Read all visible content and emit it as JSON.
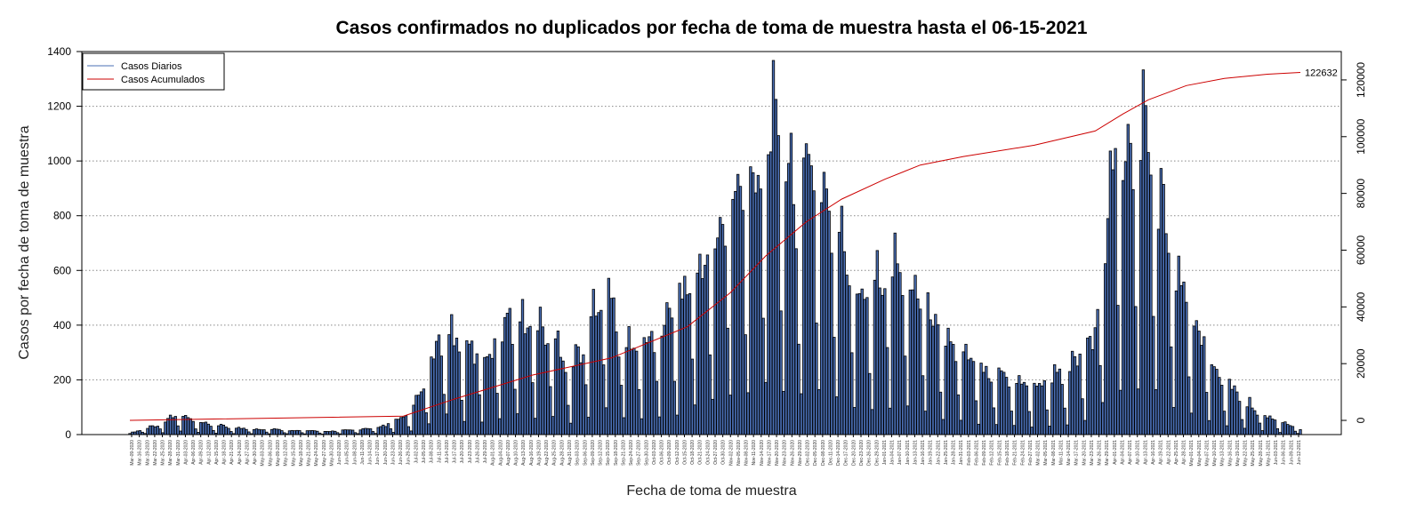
{
  "chart_data": {
    "type": "bar",
    "title": "Casos confirmados no duplicados por fecha de toma de muestra hasta el 06-15-2021",
    "xlabel": "Fecha de toma de muestra",
    "ylabel": "Casos por fecha de toma de muestra",
    "ylim": [
      0,
      1400
    ],
    "y_ticks": [
      "0",
      "200",
      "400",
      "600",
      "800",
      "1000",
      "1200",
      "1400"
    ],
    "y2lim": [
      -5000,
      130000
    ],
    "y2_ticks": [
      "0",
      "20000",
      "40000",
      "60000",
      "80000",
      "100000",
      "120000"
    ],
    "grid": "horizontal dotted",
    "legend_position": "top-left",
    "legend": [
      "Casos Diarios",
      "Casos Acumulados"
    ],
    "end_label": "122632",
    "colors": {
      "daily": "#4a6fb5",
      "daily_outline": "#000000",
      "cumulative": "#cc0000"
    },
    "x_date_labels": [
      "Mar-09-2020",
      "Mar-16-2020",
      "Mar-19-2020",
      "Mar-22-2020",
      "Mar-25-2020",
      "Mar-28-2020",
      "Mar-31-2020",
      "Apr-03-2020",
      "Apr-06-2020",
      "Apr-09-2020",
      "Apr-12-2020",
      "Apr-15-2020",
      "Apr-18-2020",
      "Apr-21-2020",
      "Apr-24-2020",
      "Apr-27-2020",
      "Apr-30-2020",
      "May-03-2020",
      "May-06-2020",
      "May-09-2020",
      "May-12-2020",
      "May-15-2020",
      "May-18-2020",
      "May-21-2020",
      "May-24-2020",
      "May-27-2020",
      "May-30-2020",
      "Jun-02-2020",
      "Jun-05-2020",
      "Jun-08-2020",
      "Jun-11-2020",
      "Jun-14-2020",
      "Jun-17-2020",
      "Jun-20-2020",
      "Jun-23-2020",
      "Jun-26-2020",
      "Jun-29-2020",
      "Jul-02-2020",
      "Jul-05-2020",
      "Jul-08-2020",
      "Jul-11-2020",
      "Jul-14-2020",
      "Jul-17-2020",
      "Jul-20-2020",
      "Jul-23-2020",
      "Jul-26-2020",
      "Jul-29-2020",
      "Aug-01-2020",
      "Aug-04-2020",
      "Aug-07-2020",
      "Aug-10-2020",
      "Aug-13-2020",
      "Aug-16-2020",
      "Aug-19-2020",
      "Aug-22-2020",
      "Aug-25-2020",
      "Aug-28-2020",
      "Aug-31-2020",
      "Sep-03-2020",
      "Sep-06-2020",
      "Sep-09-2020",
      "Sep-12-2020",
      "Sep-15-2020",
      "Sep-18-2020",
      "Sep-21-2020",
      "Sep-24-2020",
      "Sep-27-2020",
      "Sep-30-2020",
      "Oct-03-2020",
      "Oct-06-2020",
      "Oct-09-2020",
      "Oct-12-2020",
      "Oct-15-2020",
      "Oct-18-2020",
      "Oct-21-2020",
      "Oct-24-2020",
      "Oct-27-2020",
      "Oct-30-2020",
      "Nov-02-2020",
      "Nov-05-2020",
      "Nov-08-2020",
      "Nov-11-2020",
      "Nov-14-2020",
      "Nov-17-2020",
      "Nov-20-2020",
      "Nov-23-2020",
      "Nov-26-2020",
      "Nov-29-2020",
      "Dec-02-2020",
      "Dec-05-2020",
      "Dec-08-2020",
      "Dec-11-2020",
      "Dec-14-2020",
      "Dec-17-2020",
      "Dec-20-2020",
      "Dec-23-2020",
      "Dec-26-2020",
      "Dec-29-2020",
      "Jan-01-2021",
      "Jan-04-2021",
      "Jan-07-2021",
      "Jan-10-2021",
      "Jan-13-2021",
      "Jan-16-2021",
      "Jan-19-2021",
      "Jan-22-2021",
      "Jan-25-2021",
      "Jan-28-2021",
      "Jan-31-2021",
      "Feb-03-2021",
      "Feb-06-2021",
      "Feb-09-2021",
      "Feb-12-2021",
      "Feb-15-2021",
      "Feb-18-2021",
      "Feb-21-2021",
      "Feb-24-2021",
      "Feb-27-2021",
      "Mar-02-2021",
      "Mar-05-2021",
      "Mar-08-2021",
      "Mar-11-2021",
      "Mar-14-2021",
      "Mar-17-2021",
      "Mar-20-2021",
      "Mar-23-2021",
      "Mar-26-2021",
      "Mar-29-2021",
      "Apr-01-2021",
      "Apr-04-2021",
      "Apr-07-2021",
      "Apr-10-2021",
      "Apr-13-2021",
      "Apr-16-2021",
      "Apr-19-2021",
      "Apr-22-2021",
      "Apr-25-2021",
      "Apr-28-2021",
      "May-01-2021",
      "May-04-2021",
      "May-07-2021",
      "May-10-2021",
      "May-13-2021",
      "May-16-2021",
      "May-19-2021",
      "May-22-2021",
      "May-25-2021",
      "May-28-2021",
      "May-31-2021",
      "Jun-03-2021",
      "Jun-06-2021",
      "Jun-09-2021",
      "Jun-12-2021"
    ],
    "daily_envelope": {
      "dates": [
        "2020-03-09",
        "2020-03-20",
        "2020-03-28",
        "2020-04-05",
        "2020-04-20",
        "2020-05-10",
        "2020-05-25",
        "2020-06-15",
        "2020-06-28",
        "2020-07-05",
        "2020-07-12",
        "2020-07-18",
        "2020-07-28",
        "2020-08-05",
        "2020-08-15",
        "2020-08-24",
        "2020-08-30",
        "2020-09-06",
        "2020-09-12",
        "2020-09-18",
        "2020-09-25",
        "2020-10-05",
        "2020-10-15",
        "2020-10-25",
        "2020-11-02",
        "2020-11-08",
        "2020-11-14",
        "2020-11-18",
        "2020-11-22",
        "2020-11-28",
        "2020-12-04",
        "2020-12-12",
        "2020-12-22",
        "2021-01-02",
        "2021-01-12",
        "2021-01-22",
        "2021-02-01",
        "2021-02-15",
        "2021-03-01",
        "2021-03-15",
        "2021-03-25",
        "2021-04-02",
        "2021-04-08",
        "2021-04-13",
        "2021-04-18",
        "2021-04-24",
        "2021-05-02",
        "2021-05-12",
        "2021-05-22",
        "2021-06-01",
        "2021-06-14"
      ],
      "values": [
        5,
        40,
        80,
        45,
        25,
        18,
        12,
        25,
        80,
        240,
        440,
        330,
        310,
        460,
        430,
        380,
        260,
        400,
        650,
        380,
        350,
        420,
        590,
        730,
        900,
        1000,
        1100,
        1230,
        1090,
        900,
        1080,
        830,
        560,
        680,
        610,
        420,
        300,
        240,
        190,
        260,
        380,
        1120,
        1080,
        1200,
        1000,
        700,
        470,
        270,
        140,
        70,
        20
      ]
    },
    "cumulative": {
      "dates": [
        "2020-03-09",
        "2020-06-25",
        "2020-07-15",
        "2020-08-15",
        "2020-09-15",
        "2020-10-15",
        "2020-11-01",
        "2020-11-15",
        "2020-12-01",
        "2020-12-15",
        "2021-01-01",
        "2021-01-15",
        "2021-02-01",
        "2021-03-01",
        "2021-03-25",
        "2021-04-05",
        "2021-04-15",
        "2021-04-30",
        "2021-05-15",
        "2021-06-01",
        "2021-06-14"
      ],
      "values": [
        0,
        1500,
        7500,
        16000,
        22000,
        33000,
        45000,
        58000,
        70000,
        78000,
        85000,
        90000,
        93000,
        97000,
        102000,
        108000,
        113000,
        118000,
        120500,
        122000,
        122632
      ]
    }
  }
}
